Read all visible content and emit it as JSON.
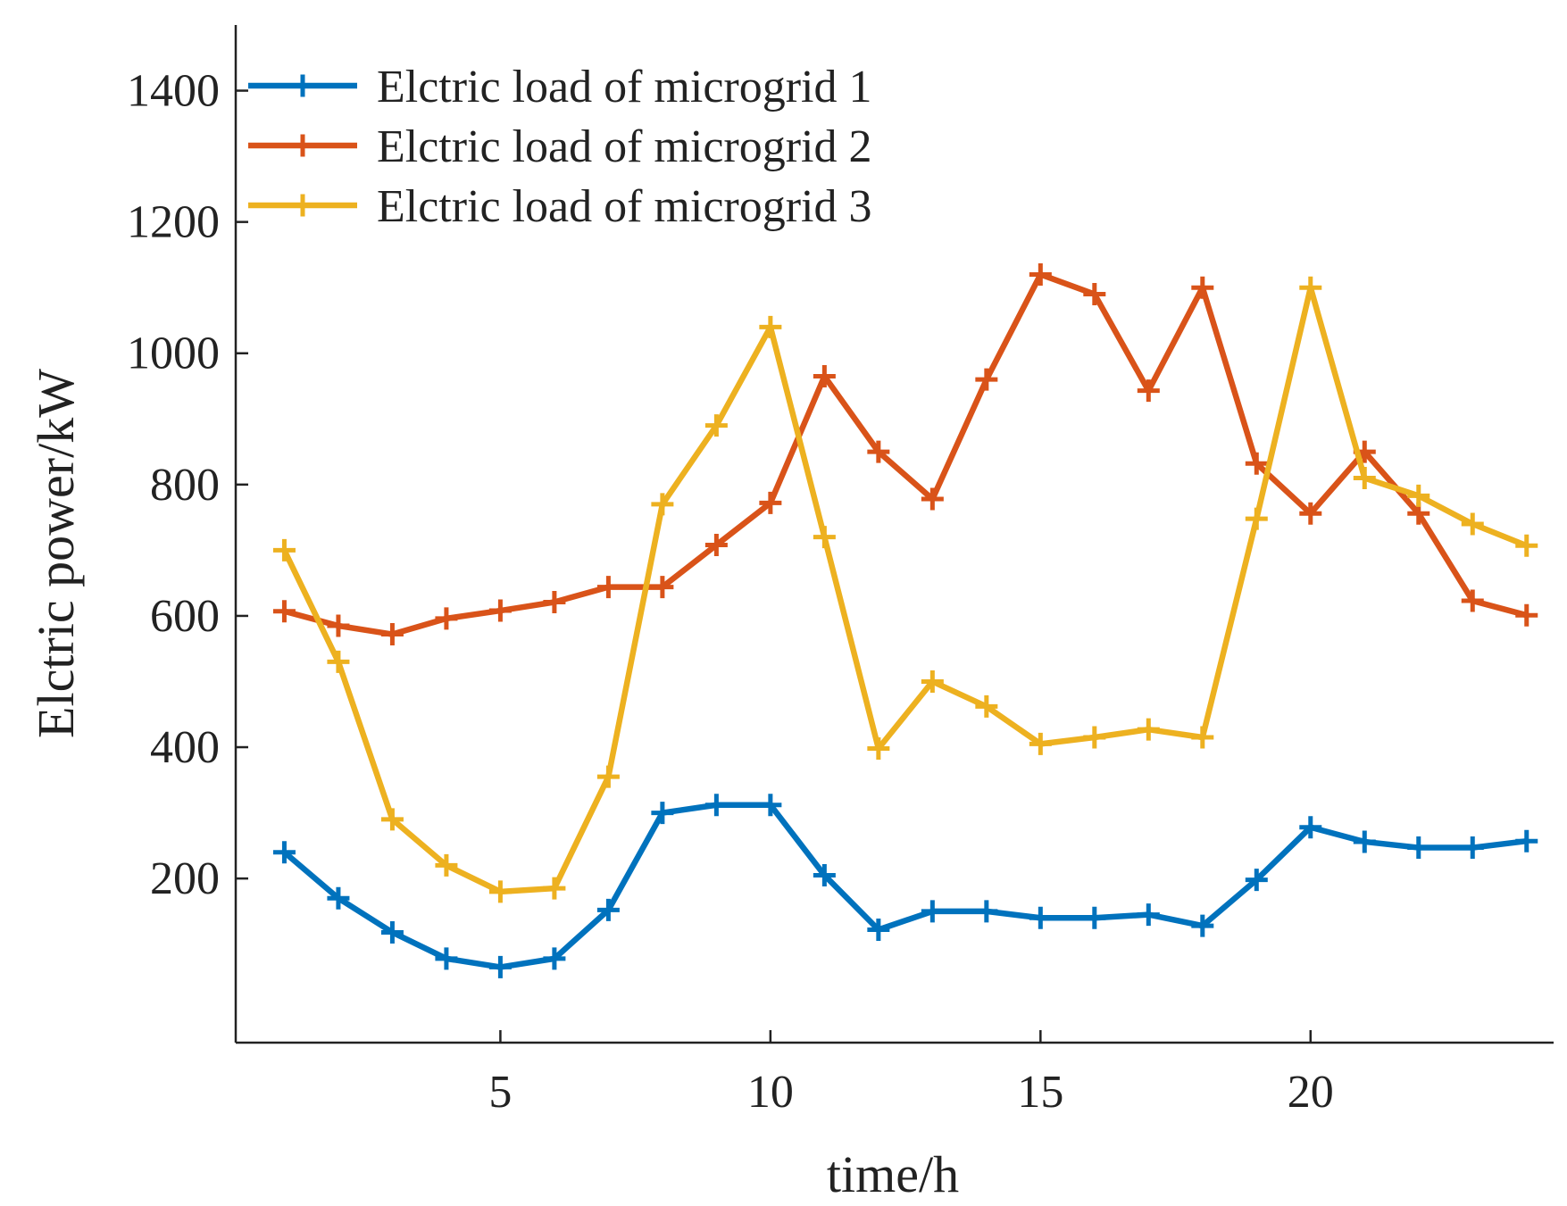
{
  "chart_data": {
    "type": "line",
    "title": "",
    "xlabel": "time/h",
    "ylabel": "Elctric power/kW",
    "xlim": [
      0.1,
      24.5
    ],
    "ylim": [
      -50,
      1500
    ],
    "xticks": [
      5,
      10,
      15,
      20
    ],
    "yticks": [
      200,
      400,
      600,
      800,
      1000,
      1200,
      1400
    ],
    "grid": false,
    "legend_position": "top-left",
    "x": [
      1,
      2,
      3,
      4,
      5,
      6,
      7,
      8,
      9,
      10,
      11,
      12,
      13,
      14,
      15,
      16,
      17,
      18,
      19,
      20,
      21,
      22,
      23,
      24
    ],
    "series": [
      {
        "name": "Elctric load of microgrid 1",
        "color": "#0072BD",
        "values": [
          240,
          170,
          118,
          78,
          65,
          78,
          152,
          300,
          312,
          312,
          205,
          122,
          150,
          150,
          140,
          140,
          145,
          128,
          198,
          278,
          256,
          247,
          247,
          257
        ]
      },
      {
        "name": "Elctric load of microgrid 2",
        "color": "#D95319",
        "values": [
          607,
          585,
          572,
          596,
          608,
          621,
          644,
          644,
          708,
          772,
          965,
          850,
          778,
          960,
          1120,
          1090,
          943,
          1100,
          832,
          756,
          850,
          756,
          623,
          601
        ]
      },
      {
        "name": "Elctric load of microgrid 3",
        "color": "#EDB120",
        "values": [
          700,
          530,
          290,
          220,
          180,
          185,
          355,
          770,
          890,
          1040,
          720,
          398,
          500,
          462,
          405,
          415,
          427,
          415,
          748,
          1100,
          810,
          783,
          740,
          707
        ]
      }
    ]
  }
}
